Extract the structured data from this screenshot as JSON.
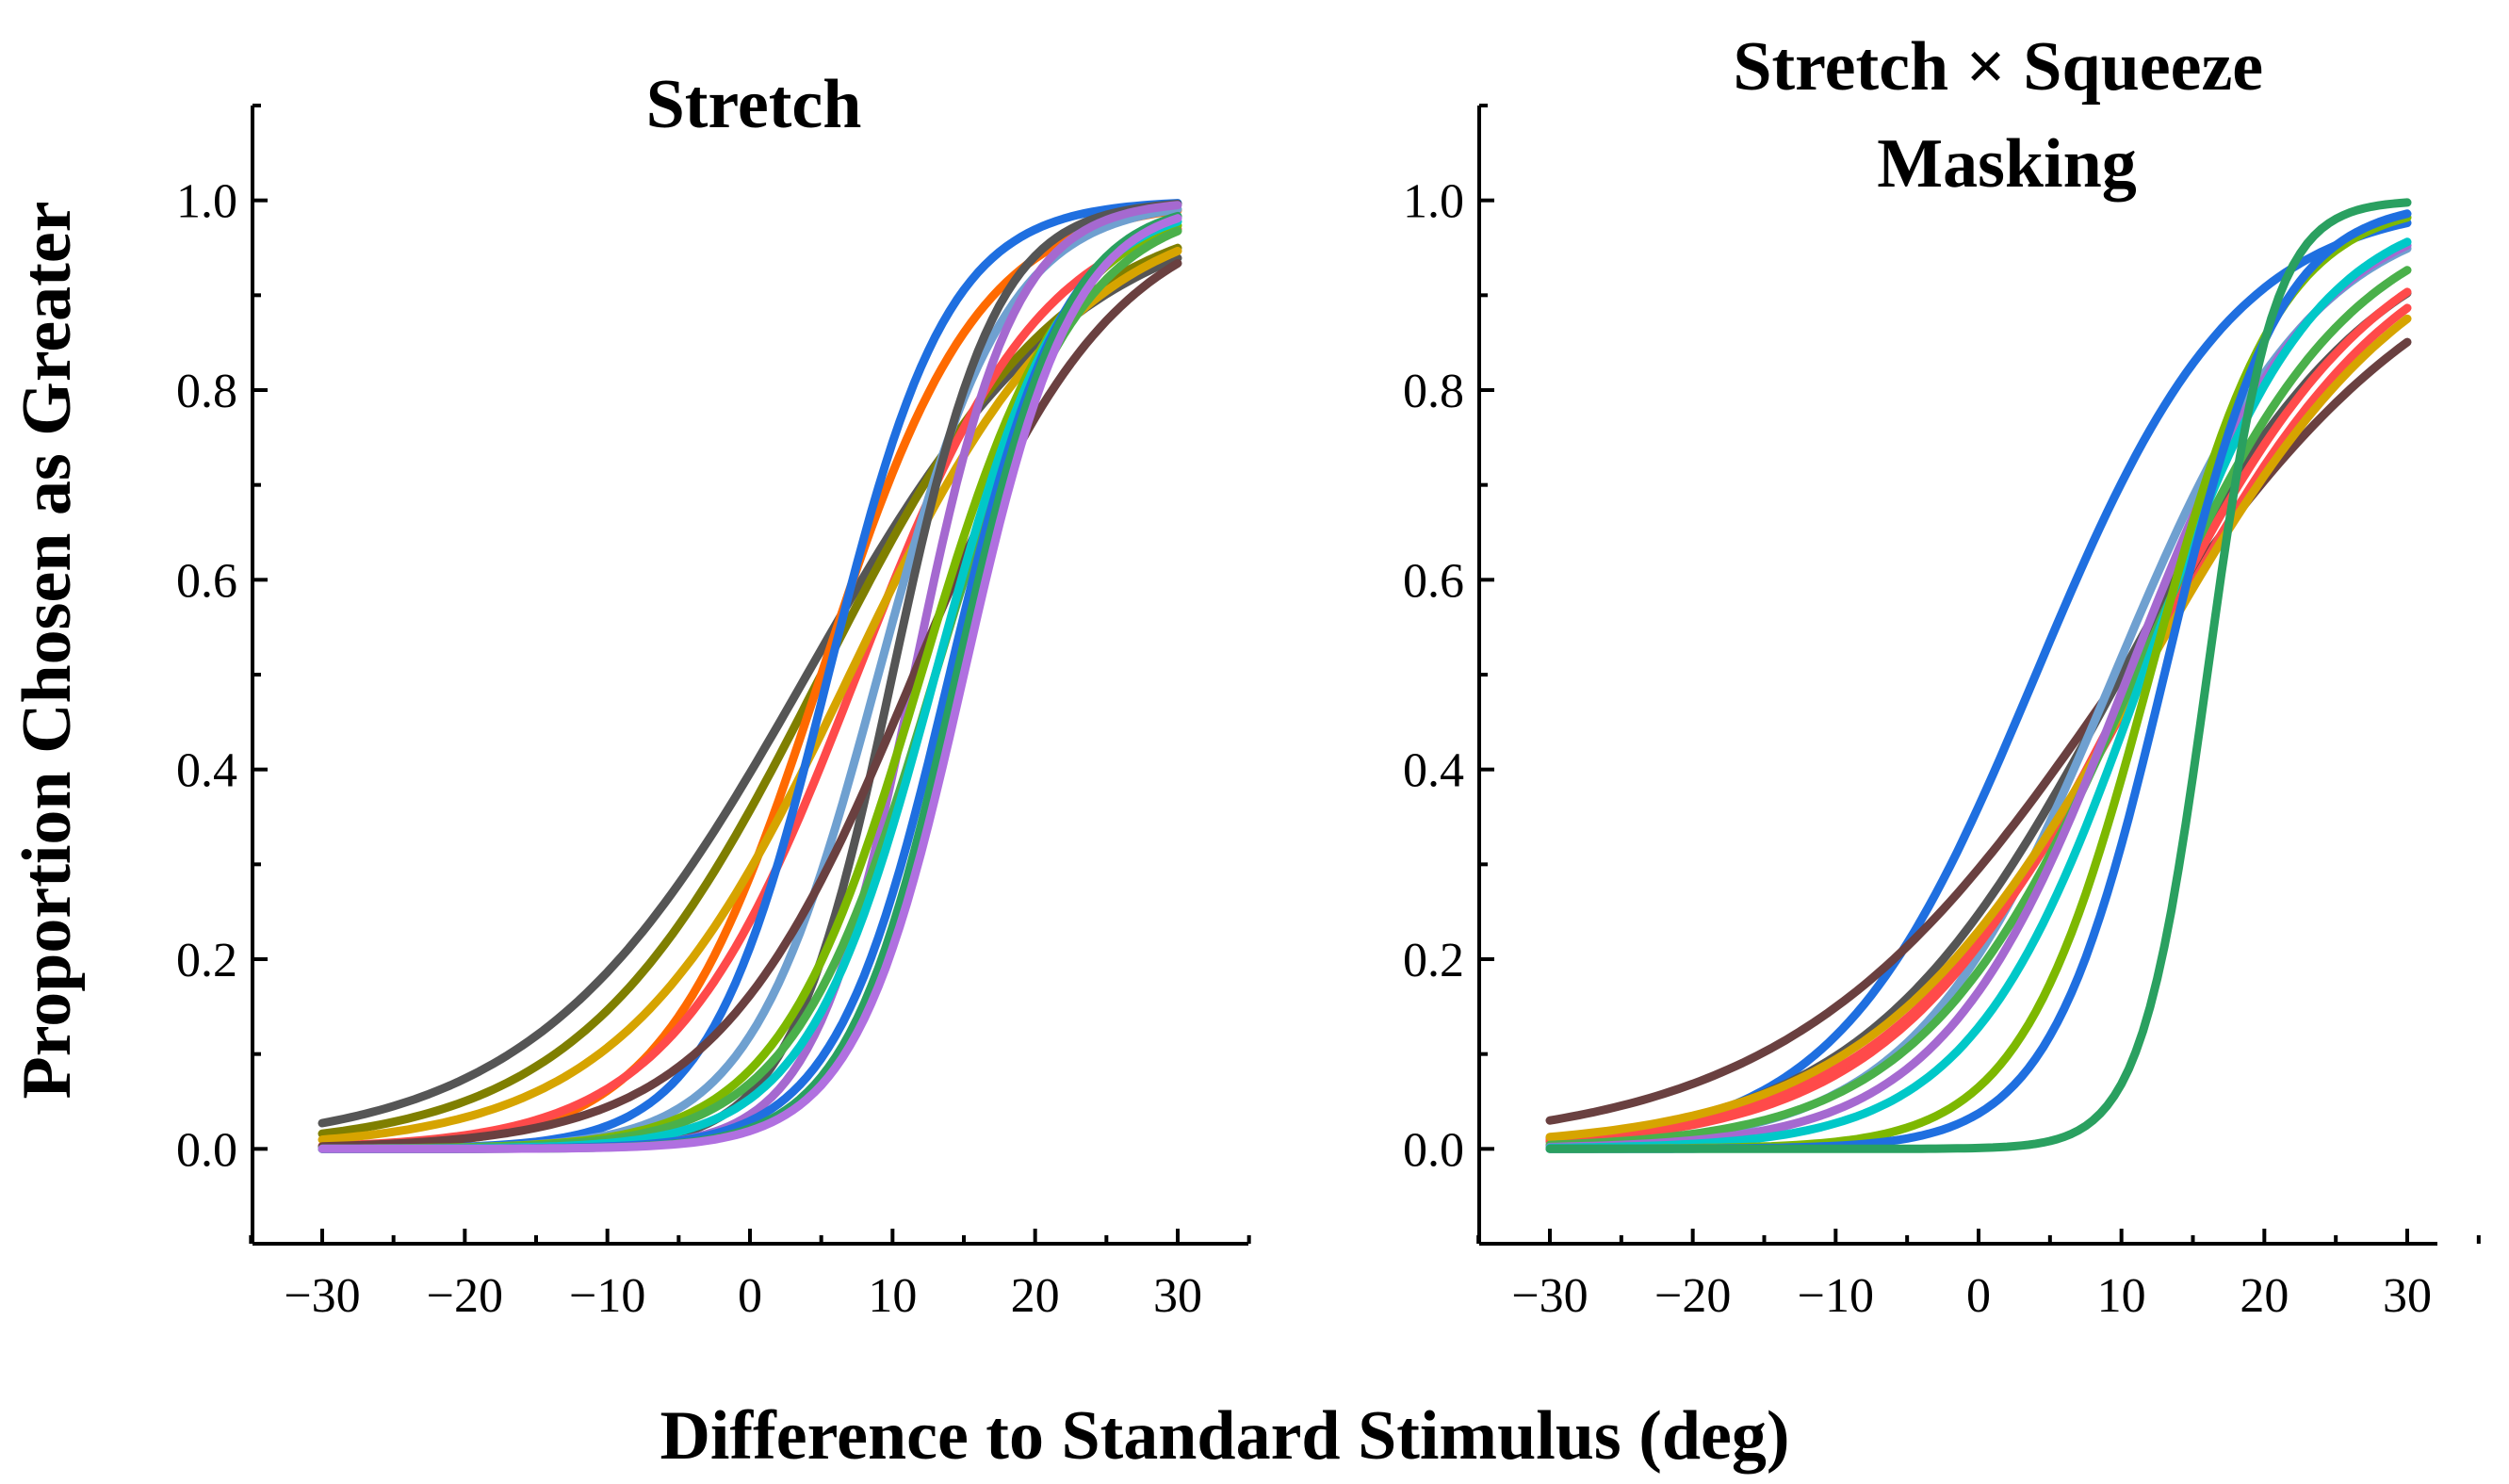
{
  "figure": {
    "ylabel": "Proportion Chosen as Greater",
    "xlabel": "Difference to Standard Stimulus (deg)"
  },
  "chart_data": [
    {
      "type": "line",
      "title": "Stretch",
      "xlim": [
        -35,
        35
      ],
      "ylim": [
        -0.1,
        1.1
      ],
      "x_ticks": [
        -30,
        -20,
        -10,
        0,
        10,
        20,
        30
      ],
      "x_tick_labels": [
        "−30",
        "−20",
        "−10",
        "0",
        "10",
        "20",
        "30"
      ],
      "y_ticks": [
        0.0,
        0.2,
        0.4,
        0.6,
        0.8,
        1.0
      ],
      "y_tick_labels": [
        "0.0",
        "0.2",
        "0.4",
        "0.6",
        "0.8",
        "1.0"
      ],
      "x_range": [
        -30,
        30
      ],
      "series": [
        {
          "color": "#555555",
          "mu": 4.0,
          "s": 9.5
        },
        {
          "color": "#7f7f00",
          "mu": 5.0,
          "s": 8.5
        },
        {
          "color": "#ff6a00",
          "mu": 5.0,
          "s": 5.5
        },
        {
          "color": "#ff4a4a",
          "mu": 7.5,
          "s": 6.5
        },
        {
          "color": "#d6a400",
          "mu": 7.0,
          "s": 8.0
        },
        {
          "color": "#1f6fe0",
          "mu": 5.5,
          "s": 4.2
        },
        {
          "color": "#6fa0d0",
          "mu": 9.0,
          "s": 4.5
        },
        {
          "color": "#555555",
          "mu": 10.0,
          "s": 3.6
        },
        {
          "color": "#a569d0",
          "mu": 11.5,
          "s": 3.5
        },
        {
          "color": "#6a4040",
          "mu": 11.5,
          "s": 7.0
        },
        {
          "color": "#7db800",
          "mu": 12.0,
          "s": 5.0
        },
        {
          "color": "#4ab04a",
          "mu": 13.0,
          "s": 5.0
        },
        {
          "color": "#00c8c8",
          "mu": 13.0,
          "s": 4.5
        },
        {
          "color": "#1f6fe0",
          "mu": 14.0,
          "s": 4.0
        },
        {
          "color": "#2aa060",
          "mu": 14.5,
          "s": 3.8
        },
        {
          "color": "#b070e0",
          "mu": 15.0,
          "s": 3.8
        }
      ]
    },
    {
      "type": "line",
      "title": "Stretch × Squeeze\nMasking",
      "title_lines": [
        "Stretch × Squeeze",
        "Masking"
      ],
      "xlim": [
        -35,
        35
      ],
      "ylim": [
        -0.1,
        1.1
      ],
      "x_ticks": [
        -30,
        -20,
        -10,
        0,
        10,
        20,
        30
      ],
      "x_tick_labels": [
        "−30",
        "−20",
        "−10",
        "0",
        "10",
        "20",
        "30"
      ],
      "y_ticks": [
        0.0,
        0.2,
        0.4,
        0.6,
        0.8,
        1.0
      ],
      "y_tick_labels": [
        "0.0",
        "0.2",
        "0.4",
        "0.6",
        "0.8",
        "1.0"
      ],
      "x_range": [
        -30,
        30
      ],
      "series": [
        {
          "color": "#1f6fe0",
          "mu": 4.0,
          "s": 7.0
        },
        {
          "color": "#6a4040",
          "mu": 10.0,
          "s": 11.5
        },
        {
          "color": "#555555",
          "mu": 10.0,
          "s": 9.0
        },
        {
          "color": "#6fa0d0",
          "mu": 9.5,
          "s": 7.0
        },
        {
          "color": "#ff4a4a",
          "mu": 11.0,
          "s": 8.5
        },
        {
          "color": "#ff4a4a",
          "mu": 11.5,
          "s": 9.0
        },
        {
          "color": "#d6a400",
          "mu": 11.5,
          "s": 9.5
        },
        {
          "color": "#4ab04a",
          "mu": 11.0,
          "s": 7.5
        },
        {
          "color": "#a569d0",
          "mu": 10.5,
          "s": 6.5
        },
        {
          "color": "#00c8c8",
          "mu": 11.5,
          "s": 6.0
        },
        {
          "color": "#7db800",
          "mu": 12.0,
          "s": 4.5
        },
        {
          "color": "#1f6fe0",
          "mu": 13.0,
          "s": 4.0
        },
        {
          "color": "#2aa060",
          "mu": 16.0,
          "s": 2.3
        }
      ]
    }
  ]
}
